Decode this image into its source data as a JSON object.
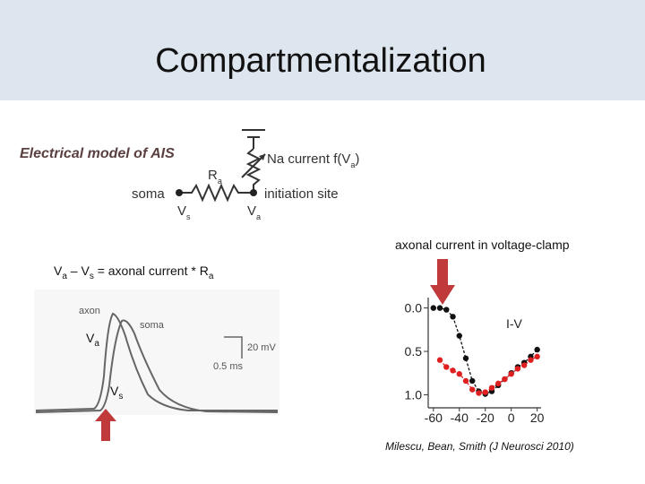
{
  "title": "Compartmentalization",
  "model": {
    "heading": "Electrical model of AIS",
    "na_current": [
      "Na current f(V",
      "a",
      ")"
    ],
    "resistor": [
      "R",
      "a"
    ],
    "soma": "soma",
    "initiation_site": "initiation site",
    "vs": [
      "V",
      "s"
    ],
    "va": [
      "V",
      "a"
    ]
  },
  "equation": [
    "V",
    "a",
    " – V",
    "s",
    " = axonal current * R",
    "a"
  ],
  "traces": {
    "axon": "axon",
    "soma": "soma",
    "scale_v": "20 mV",
    "scale_t": "0.5 ms",
    "va": [
      "V",
      "a"
    ],
    "vs": [
      "V",
      "s"
    ]
  },
  "clamp_caption": "axonal current in voltage-clamp",
  "citation": "Milescu, Bean, Smith (J Neurosci 2010)",
  "chart_data": {
    "type": "line",
    "title": "I-V",
    "x": [
      -60,
      -55,
      -50,
      -45,
      -40,
      -35,
      -30,
      -25,
      -20,
      -15,
      -10,
      -5,
      0,
      5,
      10,
      15,
      20
    ],
    "series": [
      {
        "color": "#111111",
        "values": [
          0,
          0,
          0.02,
          0.1,
          0.32,
          0.58,
          0.84,
          0.96,
          0.99,
          0.96,
          0.89,
          0.82,
          0.75,
          0.68,
          0.63,
          0.56,
          0.48
        ]
      },
      {
        "color": "#e02020",
        "values": [
          null,
          0.6,
          0.68,
          0.72,
          0.76,
          0.84,
          0.94,
          0.98,
          0.97,
          0.92,
          0.87,
          0.82,
          0.76,
          0.7,
          0.66,
          0.6,
          0.56
        ]
      }
    ],
    "xlim": [
      -64,
      23
    ],
    "ylim": [
      1.15,
      -0.12
    ],
    "xticks": [
      -60,
      -40,
      -20,
      0,
      20
    ],
    "yticks": [
      {
        "value": 0,
        "label": "0.0"
      },
      {
        "value": 0.5,
        "label": "0.5"
      },
      {
        "value": 1,
        "label": "1.0"
      }
    ]
  }
}
